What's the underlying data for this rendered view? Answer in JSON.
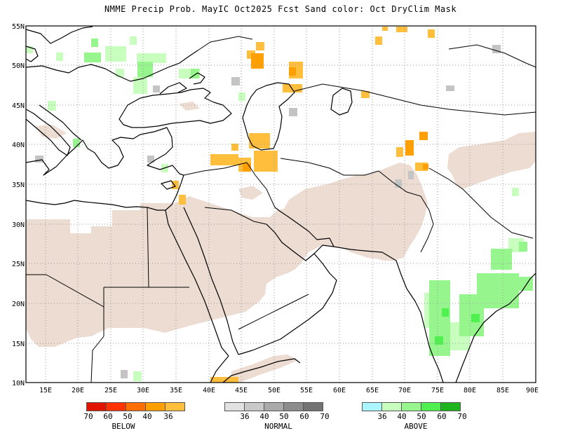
{
  "title": "NMME Precip Prob. MayIC  Oct2025 Fcst  Sand color: Oct DryClim Mask",
  "map": {
    "lon_range": [
      12,
      90
    ],
    "lat_range": [
      10,
      55
    ],
    "lat_ticks": [
      "55N",
      "50N",
      "45N",
      "40N",
      "35N",
      "30N",
      "25N",
      "20N",
      "15N",
      "10N"
    ],
    "lon_ticks": [
      "15E",
      "20E",
      "25E",
      "30E",
      "35E",
      "40E",
      "45E",
      "50E",
      "55E",
      "60E",
      "65E",
      "70E",
      "75E",
      "80E",
      "85E",
      "90E"
    ],
    "colors": {
      "dry_mask": "#ecdcd2",
      "land_line": "#000000",
      "grid": "#9a9a9a",
      "below_36": "#ffbe3c",
      "below_40": "#ffa000",
      "normal": "#c4c4c4",
      "above_36": "#c8ffbe",
      "above_40": "#96f58c",
      "above_50": "#50f050"
    }
  },
  "legend": {
    "below": {
      "caption": "BELOW",
      "labels": [
        "70",
        "60",
        "50",
        "40",
        "36"
      ],
      "colors": [
        "#e11400",
        "#ff3200",
        "#ff6e00",
        "#ffa000",
        "#ffbe3c"
      ]
    },
    "normal": {
      "caption": "NORMAL",
      "labels": [
        "36",
        "40",
        "50",
        "60",
        "70"
      ],
      "colors": [
        "#e1e1e1",
        "#c8c8c8",
        "#aaaaaa",
        "#8c8c8c",
        "#737373"
      ]
    },
    "above": {
      "caption": "ABOVE",
      "labels": [
        "36",
        "40",
        "50",
        "60",
        "70"
      ],
      "colors": [
        "#aaf5ff",
        "#c8ffbe",
        "#96f58c",
        "#50f050",
        "#1eb41e"
      ]
    }
  }
}
